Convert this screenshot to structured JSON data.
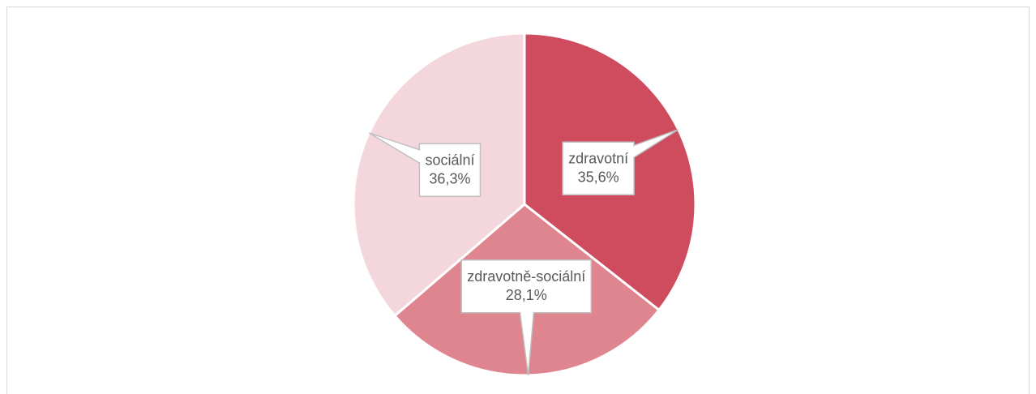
{
  "chart_data": {
    "type": "pie",
    "categories": [
      "zdravotní",
      "zdravotně-sociální",
      "sociální"
    ],
    "values": [
      35.6,
      28.1,
      36.3
    ],
    "value_labels": [
      "35,6%",
      "28,1%",
      "36,3%"
    ],
    "colors": [
      "#cf4b5e",
      "#df858f",
      "#f4d7dc"
    ]
  }
}
